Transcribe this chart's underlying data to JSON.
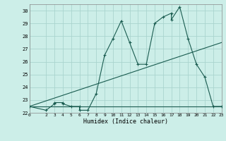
{
  "xlabel": "Humidex (Indice chaleur)",
  "bg_color": "#cceee8",
  "grid_color": "#aad4ce",
  "line_color": "#1a5c50",
  "xlim": [
    0,
    23
  ],
  "ylim": [
    22,
    30.5
  ],
  "yticks": [
    22,
    23,
    24,
    25,
    26,
    27,
    28,
    29,
    30
  ],
  "xtick_labels": [
    "0",
    "2",
    "3",
    "4",
    "5",
    "6",
    "7",
    "8",
    "9",
    "10",
    "11",
    "12",
    "13",
    "14",
    "15",
    "16",
    "17",
    "18",
    "19",
    "20",
    "21",
    "22",
    "23"
  ],
  "xtick_vals": [
    0,
    2,
    3,
    4,
    5,
    6,
    7,
    8,
    9,
    10,
    11,
    12,
    13,
    14,
    15,
    16,
    17,
    18,
    19,
    20,
    21,
    22,
    23
  ],
  "series1_x": [
    0,
    2,
    3,
    3,
    4,
    4,
    5,
    6,
    6,
    7,
    8,
    9,
    10,
    11,
    12,
    13,
    14,
    15,
    16,
    17,
    17,
    18,
    19,
    20,
    21,
    22,
    23
  ],
  "series1_y": [
    22.5,
    22.2,
    22.7,
    22.8,
    22.8,
    22.7,
    22.5,
    22.5,
    22.2,
    22.2,
    23.5,
    26.5,
    27.8,
    29.2,
    27.5,
    25.8,
    25.8,
    29.0,
    29.5,
    29.8,
    29.3,
    30.3,
    27.8,
    25.8,
    24.8,
    22.5,
    22.5
  ],
  "series2_x": [
    0,
    23
  ],
  "series2_y": [
    22.5,
    27.5
  ],
  "series3_x": [
    0,
    19,
    23
  ],
  "series3_y": [
    22.5,
    22.5,
    22.5
  ]
}
